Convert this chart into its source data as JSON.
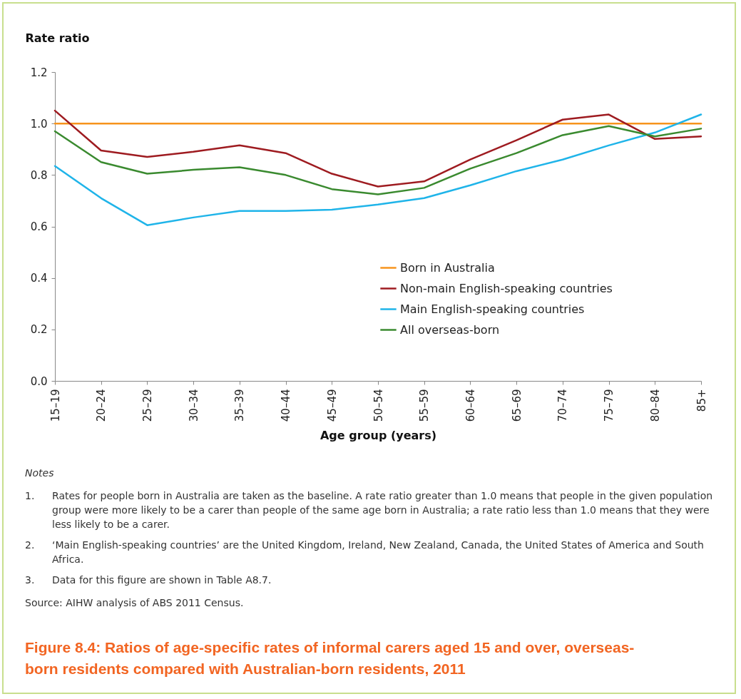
{
  "chart_data": {
    "type": "line",
    "title": "Figure 8.4: Ratios of age-specific rates of informal carers aged 15 and over, overseas-born residents compared with Australian-born residents, 2011",
    "xlabel": "Age group (years)",
    "ylabel": "Rate ratio",
    "categories": [
      "15–19",
      "20–24",
      "25–29",
      "30–34",
      "35–39",
      "40–44",
      "45–49",
      "50–54",
      "55–59",
      "60–64",
      "65–69",
      "70–74",
      "75–79",
      "80–84",
      "85+"
    ],
    "series": [
      {
        "name": "Born in Australia",
        "color": "#f7941d",
        "values": [
          1.0,
          1.0,
          1.0,
          1.0,
          1.0,
          1.0,
          1.0,
          1.0,
          1.0,
          1.0,
          1.0,
          1.0,
          1.0,
          1.0,
          1.0
        ]
      },
      {
        "name": "Non-main English-speaking countries",
        "color": "#9e1b20",
        "values": [
          1.05,
          0.895,
          0.87,
          0.89,
          0.915,
          0.885,
          0.805,
          0.755,
          0.775,
          0.86,
          0.935,
          1.015,
          1.035,
          0.94,
          0.95
        ]
      },
      {
        "name": "Main English-speaking countries",
        "color": "#1fb4e9",
        "values": [
          0.835,
          0.71,
          0.605,
          0.635,
          0.66,
          0.66,
          0.665,
          0.685,
          0.71,
          0.76,
          0.815,
          0.86,
          0.915,
          0.965,
          1.035
        ]
      },
      {
        "name": "All overseas-born",
        "color": "#3a8a2f",
        "values": [
          0.97,
          0.85,
          0.805,
          0.82,
          0.83,
          0.8,
          0.745,
          0.725,
          0.75,
          0.825,
          0.885,
          0.955,
          0.99,
          0.95,
          0.98
        ]
      }
    ],
    "ylim": [
      0,
      1.2
    ],
    "yticks": [
      {
        "value": 0,
        "label": "0.0"
      },
      0.2,
      0.4,
      0.6,
      0.8,
      {
        "value": 1,
        "label": "1.0"
      },
      1.2
    ],
    "grid": false,
    "legend": "center right",
    "marker": "none",
    "line_style": "solid",
    "annotations": [
      "Notes",
      "1.\tRates for people born in Australia are taken as the baseline. A rate ratio greater than 1.0 means that people in the given population group were more likely to be a carer than people of the same age born in Australia; a rate ratio less than 1.0 means that they were less likely to be a carer.",
      "2.\t‘Main English-speaking countries’ are the United Kingdom, Ireland, New Zealand, Canada, the United States of America and South Africa.",
      "3.\tData for this figure are shown in Table A8.7.",
      "Source: AIHW analysis of ABS 2011 Census."
    ]
  }
}
